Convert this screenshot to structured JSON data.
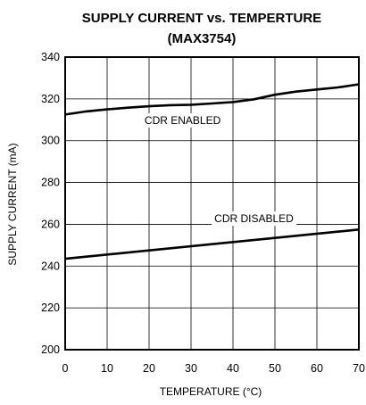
{
  "chart_data": {
    "type": "line",
    "title": "SUPPLY CURRENT vs. TEMPERTURE",
    "subtitle": "(MAX3754)",
    "xlabel": "TEMPERATURE (°C)",
    "ylabel": "SUPPLY CURRENT (mA)",
    "xlim": [
      0,
      70
    ],
    "ylim": [
      200,
      340
    ],
    "xticks": [
      0,
      10,
      20,
      30,
      40,
      50,
      60,
      70
    ],
    "yticks": [
      200,
      220,
      240,
      260,
      280,
      300,
      320,
      340
    ],
    "grid": true,
    "annotations": [
      {
        "text": "CDR ENABLED",
        "x": 28,
        "y": 308
      },
      {
        "text": "CDR DISABLED",
        "x": 45,
        "y": 261
      }
    ],
    "series": [
      {
        "x": [
          0,
          5,
          10,
          15,
          20,
          25,
          30,
          35,
          40,
          45,
          50,
          55,
          60,
          65,
          70
        ],
        "values": [
          312.5,
          314,
          315,
          315.8,
          316.5,
          317,
          317.2,
          317.8,
          318.5,
          319.8,
          322,
          323.5,
          324.5,
          325.5,
          327
        ]
      },
      {
        "x": [
          0,
          70
        ],
        "values": [
          243.5,
          257.5
        ]
      }
    ]
  }
}
